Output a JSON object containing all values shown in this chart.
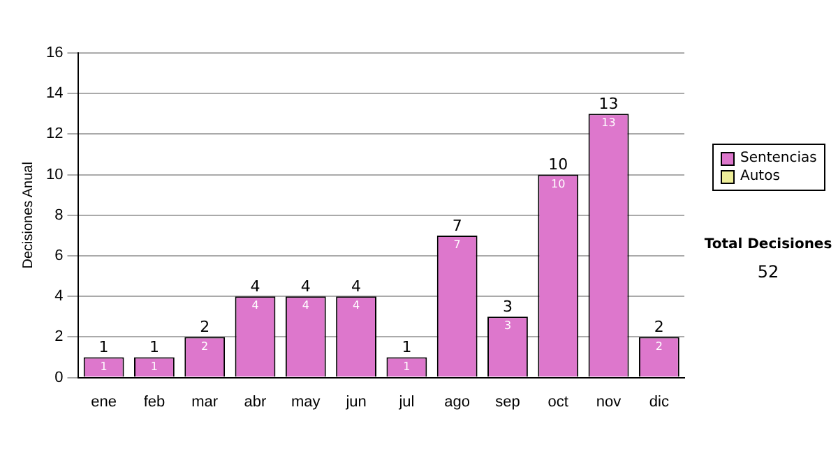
{
  "chart_data": {
    "type": "bar",
    "stacked": true,
    "ylabel": "Decisiones Anual",
    "categories": [
      "ene",
      "feb",
      "mar",
      "abr",
      "may",
      "jun",
      "jul",
      "ago",
      "sep",
      "oct",
      "nov",
      "dic"
    ],
    "series": [
      {
        "name": "Sentencias",
        "color": "#dd77cc",
        "values": [
          1,
          1,
          2,
          4,
          4,
          4,
          1,
          7,
          3,
          10,
          13,
          2
        ],
        "value_labels": [
          "1",
          "1",
          "2",
          "4",
          "4",
          "4",
          "1",
          "7",
          "3",
          "10",
          "13",
          "2"
        ]
      },
      {
        "name": "Autos",
        "color": "#eeee99",
        "values": [
          0,
          0,
          0,
          0,
          0,
          0,
          0,
          0,
          0,
          0,
          0,
          0
        ]
      }
    ],
    "totals": [
      "1",
      "1",
      "2",
      "4",
      "4",
      "4",
      "1",
      "7",
      "3",
      "10",
      "13",
      "2"
    ],
    "ylim": [
      0,
      16
    ],
    "yticks": [
      0,
      2,
      4,
      6,
      8,
      10,
      12,
      14,
      16
    ],
    "grid": "y",
    "legend": "right",
    "annotations": [
      "Total Decisiones",
      "52"
    ]
  }
}
